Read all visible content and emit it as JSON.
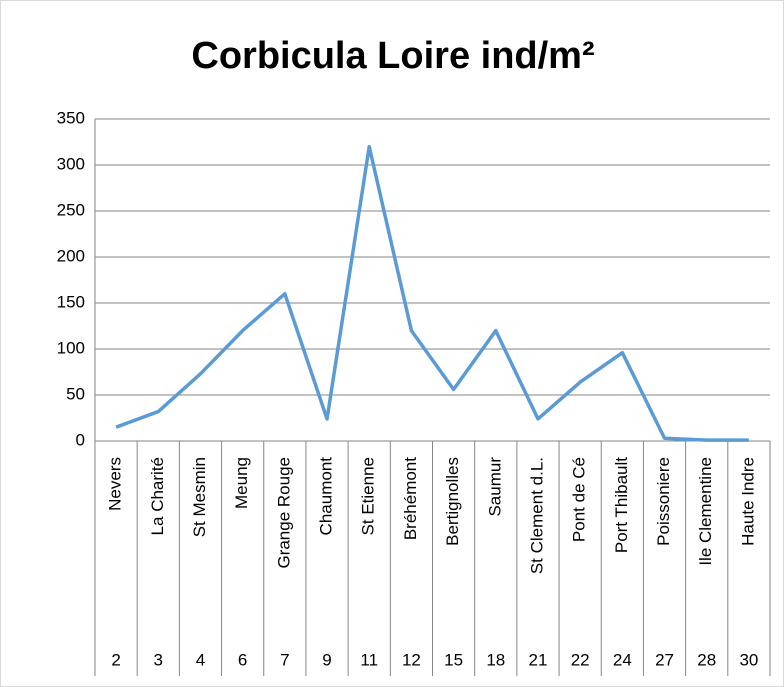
{
  "chart_data": {
    "type": "line",
    "title": "Corbicula Loire ind/m²",
    "categories": [
      "Nevers",
      "La Charité",
      "St Mesmin",
      "Meung",
      "Grange Rouge",
      "Chaumont",
      "St Etienne",
      "Bréhémont",
      "Bertignolles",
      "Saumur",
      "St Clement d.L.",
      "Pont de Cé",
      "Port Thibault",
      "Poissoniere",
      "Ile Clementine",
      "Haute Indre"
    ],
    "station_numbers": [
      2,
      3,
      4,
      6,
      7,
      9,
      11,
      12,
      15,
      18,
      21,
      22,
      24,
      27,
      28,
      30
    ],
    "values": [
      15,
      32,
      73,
      120,
      160,
      24,
      320,
      120,
      56,
      120,
      24,
      64,
      96,
      3,
      1,
      1
    ],
    "color": "#5b9bd5",
    "ylim": [
      0,
      350
    ],
    "yticks": [
      0,
      50,
      100,
      150,
      200,
      250,
      300,
      350
    ],
    "grid": true
  }
}
